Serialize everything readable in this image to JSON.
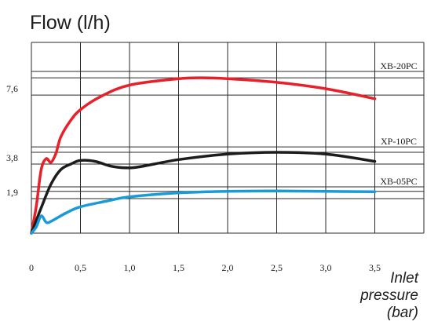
{
  "chart_data": {
    "type": "line",
    "title": "Flow (l/h)",
    "xlabel": [
      "Inlet",
      "pressure",
      "(bar)"
    ],
    "x_ticks": [
      "0",
      "0,5",
      "1,0",
      "1,5",
      "2,0",
      "2,5",
      "3,0",
      "3,5"
    ],
    "x_tick_values": [
      0,
      0.5,
      1.0,
      1.5,
      2.0,
      2.5,
      3.0,
      3.5
    ],
    "y_ticks": [
      "1,9",
      "3,8",
      "7,6"
    ],
    "y_tick_values": [
      1.9,
      3.8,
      7.6
    ],
    "xlim": [
      0,
      4.0
    ],
    "ylim": [
      0,
      10.5
    ],
    "grid": true,
    "series": [
      {
        "name": "XB-20PC",
        "color": "#e8202a",
        "nominal": 7.6,
        "points": [
          [
            0,
            0
          ],
          [
            0.05,
            1.5
          ],
          [
            0.1,
            3.5
          ],
          [
            0.15,
            4.1
          ],
          [
            0.2,
            3.9
          ],
          [
            0.25,
            4.4
          ],
          [
            0.3,
            5.3
          ],
          [
            0.4,
            6.2
          ],
          [
            0.5,
            6.8
          ],
          [
            0.7,
            7.5
          ],
          [
            1.0,
            8.15
          ],
          [
            1.5,
            8.5
          ],
          [
            1.75,
            8.55
          ],
          [
            2.0,
            8.5
          ],
          [
            2.5,
            8.3
          ],
          [
            3.0,
            7.95
          ],
          [
            3.5,
            7.4
          ]
        ]
      },
      {
        "name": "XP-10PC",
        "color": "#1c1c1c",
        "nominal": 3.8,
        "points": [
          [
            0,
            0
          ],
          [
            0.1,
            1.4
          ],
          [
            0.2,
            2.7
          ],
          [
            0.3,
            3.5
          ],
          [
            0.4,
            3.8
          ],
          [
            0.5,
            4.0
          ],
          [
            0.65,
            3.95
          ],
          [
            0.8,
            3.7
          ],
          [
            0.95,
            3.6
          ],
          [
            1.1,
            3.65
          ],
          [
            1.5,
            4.05
          ],
          [
            2.0,
            4.35
          ],
          [
            2.5,
            4.45
          ],
          [
            3.0,
            4.35
          ],
          [
            3.5,
            3.95
          ]
        ]
      },
      {
        "name": "XB-05PC",
        "color": "#1a9ad6",
        "nominal": 1.9,
        "points": [
          [
            0,
            0
          ],
          [
            0.05,
            0.35
          ],
          [
            0.1,
            0.95
          ],
          [
            0.15,
            0.6
          ],
          [
            0.2,
            0.65
          ],
          [
            0.35,
            1.1
          ],
          [
            0.5,
            1.45
          ],
          [
            0.8,
            1.8
          ],
          [
            1.0,
            2.0
          ],
          [
            1.5,
            2.22
          ],
          [
            2.0,
            2.3
          ],
          [
            2.5,
            2.32
          ],
          [
            3.0,
            2.3
          ],
          [
            3.5,
            2.28
          ]
        ]
      }
    ]
  }
}
